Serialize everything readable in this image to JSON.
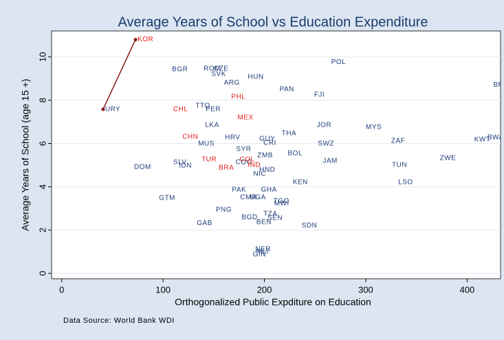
{
  "chart_data": {
    "type": "scatter",
    "title": "Average Years of School vs Education Expenditure",
    "x_label": "Orthogonalized Public Expditure on Education",
    "y_label": "Average Years of School (age 15 +)",
    "source": "Data Source: World Bank WDI",
    "xlim": [
      -10,
      433
    ],
    "ylim": [
      -0.25,
      11.2
    ],
    "xticks": [
      0,
      100,
      200,
      300,
      400
    ],
    "yticks": [
      0,
      2,
      4,
      6,
      8,
      10
    ],
    "grid": true,
    "series": [
      {
        "color": "#1f3d7a",
        "labels": [
          "BGR",
          "ROM",
          "CZE",
          "SVK",
          "HUN",
          "ARG",
          "POL",
          "PAN",
          "FJI",
          "BRB",
          "TTO",
          "PER",
          "LKA",
          "THA",
          "JOR",
          "MYS",
          "HRV",
          "GUY",
          "CRI",
          "MUS",
          "SWZ",
          "ZAF",
          "KWT",
          "BWA",
          "SYR",
          "ZMB",
          "BOL",
          "JAM",
          "SLV",
          "IDN",
          "COG",
          "DOM",
          "TUN",
          "ZWE",
          "HND",
          "NIC",
          "KEN",
          "LSO",
          "PAK",
          "GHA",
          "CMR",
          "UGA",
          "GTM",
          "TGO",
          "MWI",
          "PNG",
          "TZA",
          "BGD",
          "SEN",
          "BEN",
          "GAB",
          "SDN",
          "NER",
          "MLI",
          "GIN"
        ],
        "x": [
          106.8,
          138,
          148,
          145.6,
          181.6,
          158,
          263.9,
          212.9,
          247,
          423.8,
          130,
          140,
          139.5,
          215,
          249.6,
          298,
          159,
          193,
          197,
          132.6,
          250.7,
          323,
          405,
          418,
          170,
          191,
          221,
          255.5,
          108,
          113.6,
          169.5,
          69.4,
          323.8,
          371,
          193,
          187,
          225.9,
          330,
          166,
          194.6,
          174,
          183.7,
          94,
          206.8,
          207.5,
          150,
          197,
          175.5,
          201,
          190,
          131.3,
          234.7,
          189,
          190,
          186.5
        ],
        "values": [
          9.43,
          9.46,
          9.46,
          9.2,
          9.07,
          8.8,
          9.75,
          8.5,
          8.25,
          8.7,
          7.74,
          7.58,
          6.85,
          6.47,
          6.85,
          6.75,
          6.27,
          6.21,
          6.02,
          5.99,
          5.99,
          6.11,
          6.18,
          6.27,
          5.73,
          5.45,
          5.54,
          5.19,
          5.13,
          4.97,
          5.13,
          4.9,
          5.0,
          5.32,
          4.78,
          4.59,
          4.2,
          4.2,
          3.85,
          3.85,
          3.5,
          3.5,
          3.47,
          3.34,
          3.22,
          2.93,
          2.74,
          2.58,
          2.55,
          2.36,
          2.32,
          2.2,
          1.11,
          0.99,
          0.86
        ]
      },
      {
        "color": "#e0201b",
        "labels": [
          "PHL",
          "CHL",
          "MEX",
          "CHN",
          "TUR",
          "COL",
          "IND",
          "BRA"
        ],
        "x": [
          165.3,
          108,
          171.4,
          117,
          136,
          173.5,
          181.6,
          153
        ],
        "values": [
          8.15,
          7.58,
          7.2,
          6.31,
          5.25,
          5.25,
          5.0,
          4.87
        ]
      },
      {
        "color": "#8b1a1a",
        "line": true,
        "labels": [
          "KOR",
          "URY"
        ],
        "label_colors": [
          "#e0201b",
          "#1f3d7a"
        ],
        "x": [
          72.8,
          40.8
        ],
        "values": [
          10.8,
          7.58
        ]
      }
    ]
  }
}
